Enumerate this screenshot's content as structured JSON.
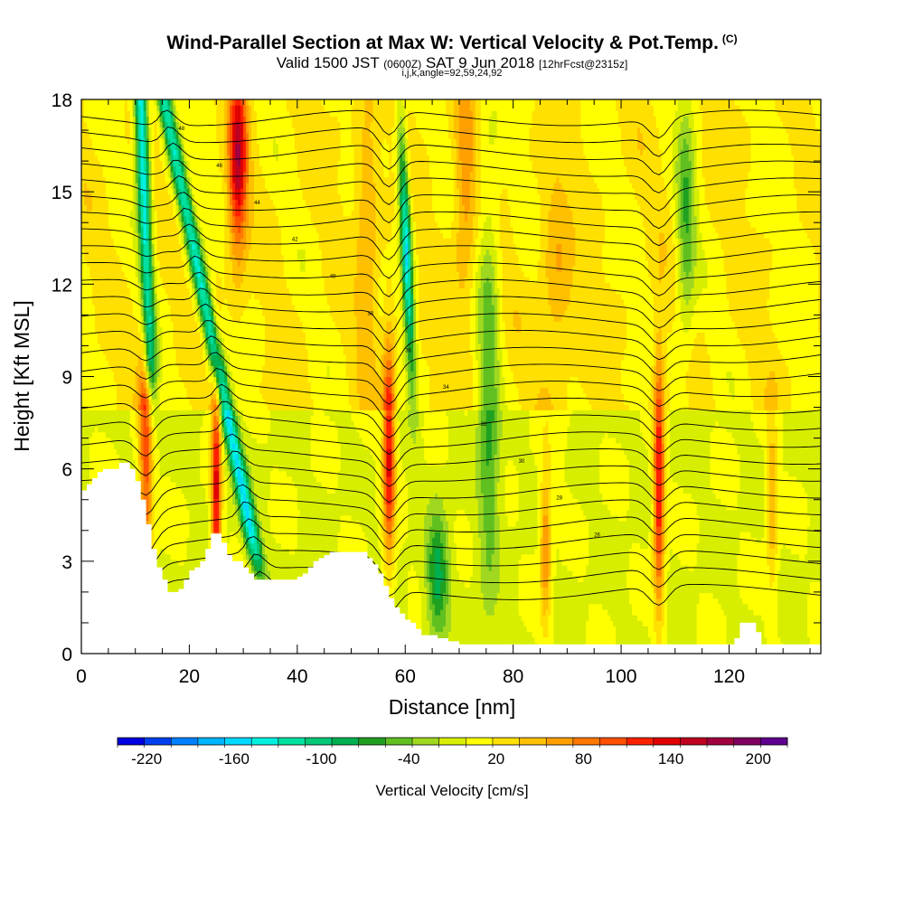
{
  "title": {
    "main": "Wind-Parallel Section at Max W: Vertical Velocity & Pot.Temp.",
    "copyright": "(C)",
    "valid_prefix": "Valid 1500 JST",
    "valid_utc": "(0600Z)",
    "valid_date": "SAT 9 Jun 2018",
    "forecast": "[12hrFcst@2315z]",
    "section_params": "i,j,k,angle=92,59,24,92"
  },
  "chart_data": {
    "type": "heatmap",
    "xlabel": "Distance [nm]",
    "ylabel": "Height [Kft MSL]",
    "xlim": [
      0,
      137
    ],
    "ylim": [
      0,
      18
    ],
    "x_ticks": [
      "0",
      "20",
      "40",
      "60",
      "80",
      "100",
      "120"
    ],
    "y_ticks": [
      "0",
      "3",
      "6",
      "9",
      "12",
      "15",
      "18"
    ],
    "colorbar": {
      "label": "Vertical Velocity [cm/s]",
      "ticks": [
        "-220",
        "-160",
        "-100",
        "-40",
        "20",
        "80",
        "140",
        "200"
      ],
      "min": -240,
      "max": 220,
      "step": 20,
      "colors": [
        "#0000e0",
        "#0040f0",
        "#0080ff",
        "#00b4ff",
        "#00d8ff",
        "#00f0e0",
        "#00e0a0",
        "#00c878",
        "#00b050",
        "#20a020",
        "#60c020",
        "#a0d820",
        "#d8ee00",
        "#ffff00",
        "#ffe000",
        "#ffc000",
        "#ffa000",
        "#ff7800",
        "#ff5000",
        "#ff2000",
        "#e00000",
        "#c00020",
        "#a00040",
        "#800060",
        "#600090"
      ]
    },
    "updraft_columns_nm": [
      12,
      25,
      29,
      57,
      86,
      107,
      128
    ],
    "peak_updraft_cm_s": 150,
    "downdraft_columns_nm": [
      11,
      26,
      60,
      66,
      76,
      112
    ],
    "peak_downdraft_cm_s": -180,
    "terrain_profile": {
      "x_nm": [
        0,
        1,
        2,
        3,
        4,
        5,
        7,
        8,
        9,
        10,
        11,
        12,
        13,
        14,
        15,
        16,
        17,
        18,
        19,
        20,
        21,
        22,
        23,
        24,
        25,
        26,
        27,
        28,
        30,
        31,
        32,
        34,
        36,
        38,
        40,
        41,
        42,
        43,
        44,
        45,
        46,
        47,
        48,
        50,
        52,
        53,
        54,
        55,
        56,
        57,
        58,
        59,
        60,
        61,
        62,
        63,
        64,
        66,
        68,
        69,
        70,
        72,
        120,
        121,
        122,
        124,
        125,
        126,
        137
      ],
      "height_kft": [
        5.3,
        5.5,
        5.7,
        5.9,
        6.0,
        6.0,
        6.2,
        6.2,
        6.0,
        5.6,
        5.0,
        4.2,
        3.4,
        2.8,
        2.4,
        2.0,
        2.0,
        2.1,
        2.4,
        2.7,
        2.8,
        3.0,
        3.4,
        3.9,
        3.9,
        3.6,
        3.2,
        3.0,
        2.8,
        2.6,
        2.4,
        2.4,
        2.4,
        2.4,
        2.5,
        2.6,
        2.8,
        3.0,
        3.1,
        3.2,
        3.3,
        3.3,
        3.3,
        3.3,
        3.3,
        3.1,
        2.9,
        2.6,
        2.2,
        1.8,
        1.5,
        1.3,
        1.1,
        1.0,
        0.8,
        0.6,
        0.6,
        0.5,
        0.4,
        0.4,
        0.3,
        0.3,
        0.3,
        0.5,
        1.0,
        1.0,
        0.7,
        0.3,
        0.3
      ]
    },
    "isentrope_labels": [
      "48",
      "46",
      "44",
      "42",
      "40",
      "38",
      "36",
      "34",
      "32",
      "30",
      "28",
      "26"
    ]
  }
}
